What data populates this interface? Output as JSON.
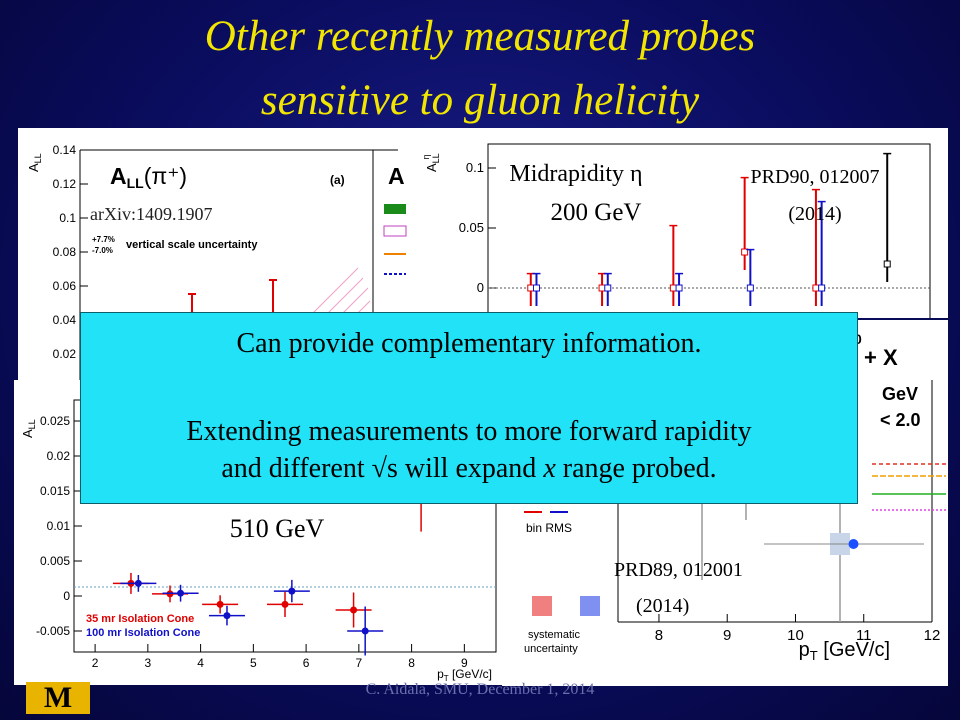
{
  "slide": {
    "title_line1": "Other recently measured probes",
    "title_line2": "sensitive to gluon helicity",
    "footer": "C. Aidala, SMU, December 1, 2014",
    "logo_text": "M"
  },
  "callout": {
    "line1": "Can provide complementary information.",
    "line2": "Extending measurements to more forward rapidity",
    "line3_pre": "and different √s will expand ",
    "line3_x": "x",
    "line3_post": " range probed."
  },
  "chart_data": [
    {
      "type": "scatter",
      "panel": "top-left",
      "plot_label": "A",
      "plot_label_sub": "LL",
      "plot_label_particle": "(π⁺)",
      "subfig": "(a)",
      "partial_label": "A",
      "ylabel": "A",
      "ylabel_sub": "LL",
      "ylim": [
        0.02,
        0.14
      ],
      "yticks": [
        "0.14",
        "0.12",
        "0.1",
        "0.08",
        "0.06",
        "0.04",
        "0.02"
      ],
      "scale_unc_plus": "+7.7%",
      "scale_unc_minus": "-7.0%",
      "scale_unc_text": "vertical scale uncertainty",
      "reference": "arXiv:1409.1907"
    },
    {
      "type": "scatter",
      "panel": "top-right",
      "ylabel": "A",
      "ylabel_sub": "LL",
      "ylabel_sup": "η",
      "ylim": [
        -0.03,
        0.12
      ],
      "yticks": [
        "0.1",
        "0.05",
        "0"
      ],
      "annotation_energy_label": "Midrapidity η",
      "annotation_energy": "200 GeV",
      "reference_line1": "PRD90, 012007",
      "reference_line2": "(2014)",
      "series": [
        {
          "name": "",
          "color": "#e00000",
          "points": [
            [
              1.0,
              0.0,
              0.0
            ],
            [
              2.0,
              0.0,
              0.0
            ],
            [
              3.0,
              0.0,
              0.04
            ],
            [
              4.0,
              0.03,
              0.05
            ],
            [
              5.0,
              0.0,
              0.07
            ]
          ]
        },
        {
          "name": "",
          "color": "#1010c8",
          "points": [
            [
              1.08,
              0.0,
              0.0
            ],
            [
              2.08,
              0.0,
              0.0
            ],
            [
              3.08,
              0.0,
              0.0
            ],
            [
              4.08,
              0.0,
              0.02
            ],
            [
              5.08,
              0.0,
              0.06
            ]
          ]
        },
        {
          "name": "",
          "color": "#000000",
          "points": [
            [
              6.0,
              0.02,
              0.08
            ]
          ]
        }
      ]
    },
    {
      "type": "scatter",
      "panel": "bottom-left",
      "ylabel": "A",
      "ylabel_sub": "LL",
      "xlabel": "p",
      "xlabel_sub": "T",
      "xlabel_unit": " [GeV/c]",
      "xlim": [
        1.6,
        9.6
      ],
      "ylim": [
        -0.008,
        0.028
      ],
      "xticks": [
        "2",
        "3",
        "4",
        "5",
        "6",
        "7",
        "8",
        "9"
      ],
      "yticks": [
        "0.025",
        "0.02",
        "0.015",
        "0.01",
        "0.005",
        "0",
        "-0.005"
      ],
      "energy": "510 GeV",
      "series": [
        {
          "name": "35 mr Isolation Cone",
          "color": "#e00000",
          "points": [
            [
              2.68,
              0.0018,
              0.0015
            ],
            [
              3.42,
              0.0003,
              0.0012
            ],
            [
              4.37,
              -0.0012,
              0.0013
            ],
            [
              5.6,
              -0.0012,
              0.0018
            ],
            [
              6.9,
              -0.002,
              0.0025
            ],
            [
              8.18,
              0.0162,
              0.007
            ]
          ]
        },
        {
          "name": "100 mr Isolation Cone",
          "color": "#1010c8",
          "points": [
            [
              2.82,
              0.0018,
              0.0012
            ],
            [
              3.62,
              0.0004,
              0.0012
            ],
            [
              4.5,
              -0.0028,
              0.0014
            ],
            [
              5.73,
              0.0007,
              0.0016
            ],
            [
              7.12,
              -0.005,
              0.0035
            ]
          ]
        }
      ]
    },
    {
      "type": "scatter",
      "panel": "bottom-right",
      "xlabel": "p",
      "xlabel_sub": "T",
      "xlabel_unit": " [GeV/c]",
      "xlim": [
        7.4,
        12.0
      ],
      "xticks": [
        "8",
        "9",
        "10",
        "11",
        "12"
      ],
      "fragments": [
        "0",
        "+ X",
        "GeV",
        "< 2.0"
      ],
      "legend_bin_rms": "bin RMS",
      "legend_systematic_line1": "systematic",
      "legend_systematic_line2": "uncertainty",
      "reference_line1": "PRD89, 012001",
      "reference_line2": "(2014)",
      "series": [
        {
          "name": "",
          "color": "#1a50ff",
          "points": [
            [
              10.85,
              0.0,
              0.0
            ]
          ]
        }
      ]
    }
  ]
}
